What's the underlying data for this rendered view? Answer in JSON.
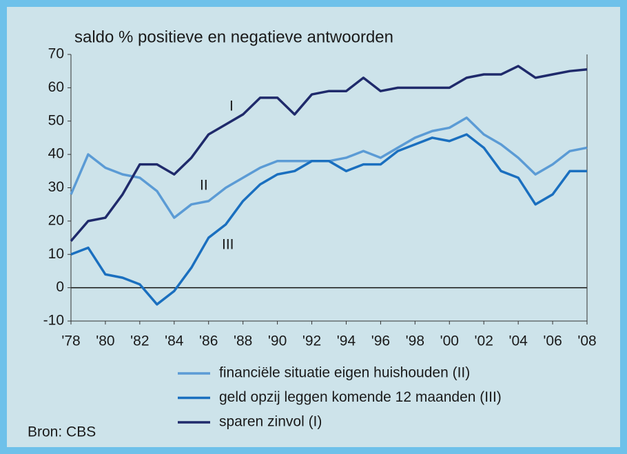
{
  "chart_data": {
    "type": "line",
    "title": "saldo % positieve en negatieve antwoorden",
    "x": [
      1978,
      1979,
      1980,
      1981,
      1982,
      1983,
      1984,
      1985,
      1986,
      1987,
      1988,
      1989,
      1990,
      1991,
      1992,
      1993,
      1994,
      1995,
      1996,
      1997,
      1998,
      1999,
      2000,
      2001,
      2002,
      2003,
      2004,
      2005,
      2006,
      2007,
      2008
    ],
    "series": [
      {
        "name": "financiële situatie eigen huishouden (II)",
        "color": "#5b9bd5",
        "values": [
          28,
          40,
          36,
          34,
          33,
          29,
          21,
          25,
          26,
          30,
          33,
          36,
          38,
          38,
          38,
          38,
          39,
          41,
          39,
          42,
          45,
          47,
          48,
          51,
          46,
          43,
          39,
          34,
          37,
          41,
          42
        ]
      },
      {
        "name": "geld opzij leggen komende 12 maanden (III)",
        "color": "#1a6fbf",
        "values": [
          10,
          12,
          4,
          3,
          1,
          -5,
          -1,
          6,
          15,
          19,
          26,
          31,
          34,
          35,
          38,
          38,
          35,
          37,
          37,
          41,
          43,
          45,
          44,
          46,
          42,
          35,
          33,
          25,
          28,
          35,
          35
        ]
      },
      {
        "name": "sparen zinvol (I)",
        "color": "#1f2a6b",
        "values": [
          14,
          20,
          21,
          28,
          37,
          37,
          34,
          39,
          46,
          49,
          52,
          57,
          57,
          52,
          58,
          59,
          59,
          63,
          59,
          60,
          60,
          60,
          60,
          63,
          64,
          64,
          66.5,
          63,
          64,
          65,
          65.5
        ]
      }
    ],
    "annotations": [
      "I",
      "II",
      "III"
    ],
    "xlim": [
      1978,
      2008
    ],
    "xticks": [
      {
        "value": 1978,
        "label": "'78"
      },
      {
        "value": 1980,
        "label": "'80"
      },
      {
        "value": 1982,
        "label": "'82"
      },
      {
        "value": 1984,
        "label": "'84"
      },
      {
        "value": 1986,
        "label": "'86"
      },
      {
        "value": 1988,
        "label": "'88"
      },
      {
        "value": 1990,
        "label": "'90"
      },
      {
        "value": 1992,
        "label": "'92"
      },
      {
        "value": 1994,
        "label": "'94"
      },
      {
        "value": 1996,
        "label": "'96"
      },
      {
        "value": 1998,
        "label": "'98"
      },
      {
        "value": 2000,
        "label": "'00"
      },
      {
        "value": 2002,
        "label": "'02"
      },
      {
        "value": 2004,
        "label": "'04"
      },
      {
        "value": 2006,
        "label": "'06"
      },
      {
        "value": 2008,
        "label": "'08"
      }
    ],
    "ylim": [
      -10,
      70
    ],
    "yticks": [
      -10,
      0,
      10,
      20,
      30,
      40,
      50,
      60,
      70
    ],
    "source": "Bron: CBS"
  }
}
